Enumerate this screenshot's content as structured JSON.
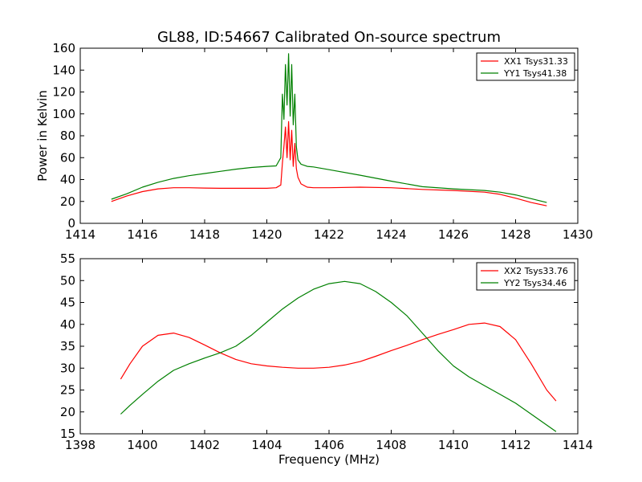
{
  "title": "GL88, ID:54667 Calibrated On-source spectrum",
  "chart_data": [
    {
      "type": "line",
      "ylabel": "Power in Kelvin",
      "xlabel": "",
      "xlim": [
        1414,
        1430
      ],
      "ylim": [
        0,
        160
      ],
      "xticks": [
        "1414",
        "1416",
        "1418",
        "1420",
        "1422",
        "1424",
        "1426",
        "1428",
        "1430"
      ],
      "yticks": [
        "0",
        "20",
        "40",
        "60",
        "80",
        "100",
        "120",
        "140",
        "160"
      ],
      "legend_position": "top-right",
      "grid": false,
      "series": [
        {
          "name": "XX1 Tsys31.33",
          "color": "#ff0000",
          "x": [
            1415.0,
            1415.5,
            1416.0,
            1416.5,
            1417.0,
            1417.5,
            1418.0,
            1418.5,
            1419.0,
            1419.5,
            1420.0,
            1420.3,
            1420.45,
            1420.5,
            1420.55,
            1420.6,
            1420.65,
            1420.7,
            1420.75,
            1420.8,
            1420.85,
            1420.9,
            1420.95,
            1421.0,
            1421.1,
            1421.3,
            1421.5,
            1422.0,
            1423.0,
            1424.0,
            1425.0,
            1426.0,
            1427.0,
            1427.5,
            1428.0,
            1428.5,
            1429.0
          ],
          "y": [
            20,
            25,
            29,
            31.5,
            32.5,
            32.5,
            32.2,
            32,
            32,
            32,
            32,
            32.5,
            35,
            55,
            70,
            88,
            60,
            93,
            58,
            85,
            52,
            73,
            50,
            42,
            36,
            33,
            32.5,
            32.5,
            33,
            32.5,
            31,
            30,
            28.5,
            26.5,
            23,
            19,
            16
          ]
        },
        {
          "name": "YY1 Tsys41.38",
          "color": "#008000",
          "x": [
            1415.0,
            1415.5,
            1416.0,
            1416.5,
            1417.0,
            1417.5,
            1418.0,
            1418.5,
            1419.0,
            1419.5,
            1420.0,
            1420.3,
            1420.45,
            1420.5,
            1420.55,
            1420.6,
            1420.65,
            1420.7,
            1420.75,
            1420.8,
            1420.85,
            1420.9,
            1420.95,
            1421.0,
            1421.1,
            1421.3,
            1421.5,
            1422.0,
            1423.0,
            1424.0,
            1425.0,
            1426.0,
            1427.0,
            1427.5,
            1428.0,
            1428.5,
            1429.0
          ],
          "y": [
            22,
            27,
            33,
            37.5,
            41,
            43.5,
            45.5,
            47.5,
            49.5,
            51,
            52,
            52.5,
            60,
            118,
            95,
            145,
            108,
            155,
            98,
            145,
            90,
            118,
            70,
            58,
            54,
            52,
            51.5,
            49,
            44,
            38.5,
            33.5,
            31.5,
            30,
            28.5,
            26,
            22.5,
            19
          ]
        }
      ]
    },
    {
      "type": "line",
      "ylabel": "",
      "xlabel": "Frequency (MHz)",
      "xlim": [
        1398,
        1414
      ],
      "ylim": [
        15,
        55
      ],
      "xticks": [
        "1398",
        "1400",
        "1402",
        "1404",
        "1406",
        "1408",
        "1410",
        "1412",
        "1414"
      ],
      "yticks": [
        "15",
        "20",
        "25",
        "30",
        "35",
        "40",
        "45",
        "50",
        "55"
      ],
      "legend_position": "top-right",
      "grid": false,
      "series": [
        {
          "name": "XX2 Tsys33.76",
          "color": "#ff0000",
          "x": [
            1399.3,
            1399.6,
            1400.0,
            1400.5,
            1401.0,
            1401.5,
            1402.0,
            1402.5,
            1403.0,
            1403.5,
            1404.0,
            1404.5,
            1405.0,
            1405.5,
            1406.0,
            1406.5,
            1407.0,
            1407.5,
            1408.0,
            1408.5,
            1409.0,
            1409.5,
            1410.0,
            1410.5,
            1411.0,
            1411.5,
            1412.0,
            1412.5,
            1413.0,
            1413.3
          ],
          "y": [
            27.5,
            31,
            35,
            37.5,
            38,
            37,
            35.3,
            33.5,
            32,
            31,
            30.5,
            30.2,
            30,
            30,
            30.2,
            30.7,
            31.5,
            32.7,
            34,
            35.2,
            36.5,
            37.7,
            38.8,
            40,
            40.3,
            39.5,
            36.5,
            31,
            25,
            22.5
          ]
        },
        {
          "name": "YY2 Tsys34.46",
          "color": "#008000",
          "x": [
            1399.3,
            1399.6,
            1400.0,
            1400.5,
            1401.0,
            1401.5,
            1402.0,
            1402.5,
            1403.0,
            1403.5,
            1404.0,
            1404.5,
            1405.0,
            1405.5,
            1406.0,
            1406.5,
            1407.0,
            1407.5,
            1408.0,
            1408.5,
            1409.0,
            1409.5,
            1410.0,
            1410.5,
            1411.0,
            1411.5,
            1412.0,
            1412.5,
            1413.0,
            1413.3
          ],
          "y": [
            19.5,
            21.5,
            24,
            27,
            29.5,
            31,
            32.3,
            33.5,
            35,
            37.5,
            40.5,
            43.5,
            46,
            48,
            49.3,
            49.8,
            49.3,
            47.5,
            45,
            42,
            38,
            34,
            30.5,
            28,
            26,
            24,
            22,
            19.5,
            17,
            15.5
          ]
        }
      ]
    }
  ]
}
